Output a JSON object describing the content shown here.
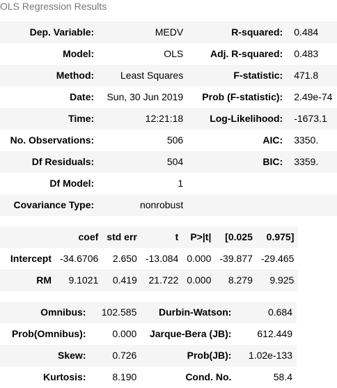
{
  "caption": "OLS Regression Results",
  "summary": {
    "rows": [
      {
        "l1": "Dep. Variable:",
        "v1": "MEDV",
        "l2": "R-squared:",
        "v2": "0.484"
      },
      {
        "l1": "Model:",
        "v1": "OLS",
        "l2": "Adj. R-squared:",
        "v2": "0.483"
      },
      {
        "l1": "Method:",
        "v1": "Least Squares",
        "l2": "F-statistic:",
        "v2": "471.8"
      },
      {
        "l1": "Date:",
        "v1": "Sun, 30 Jun 2019",
        "l2": "Prob (F-statistic):",
        "v2": "2.49e-74"
      },
      {
        "l1": "Time:",
        "v1": "12:21:18",
        "l2": "Log-Likelihood:",
        "v2": "-1673.1"
      },
      {
        "l1": "No. Observations:",
        "v1": "506",
        "l2": "AIC:",
        "v2": "3350."
      },
      {
        "l1": "Df Residuals:",
        "v1": "504",
        "l2": "BIC:",
        "v2": "3359."
      },
      {
        "l1": "Df Model:",
        "v1": "1",
        "l2": "",
        "v2": ""
      },
      {
        "l1": "Covariance Type:",
        "v1": "nonrobust",
        "l2": "",
        "v2": ""
      }
    ]
  },
  "coefficients": {
    "headers": [
      "",
      "coef",
      "std err",
      "t",
      "P>|t|",
      "[0.025",
      "0.975]"
    ],
    "rows": [
      [
        "Intercept",
        "-34.6706",
        "2.650",
        "-13.084",
        "0.000",
        "-39.877",
        "-29.465"
      ],
      [
        "RM",
        "9.1021",
        "0.419",
        "21.722",
        "0.000",
        "8.279",
        "9.925"
      ]
    ]
  },
  "diagnostics": {
    "rows": [
      {
        "l1": "Omnibus:",
        "v1": "102.585",
        "l2": "Durbin-Watson:",
        "v2": "0.684"
      },
      {
        "l1": "Prob(Omnibus):",
        "v1": "0.000",
        "l2": "Jarque-Bera (JB):",
        "v2": "612.449"
      },
      {
        "l1": "Skew:",
        "v1": "0.726",
        "l2": "Prob(JB):",
        "v2": "1.02e-133"
      },
      {
        "l1": "Kurtosis:",
        "v1": "8.190",
        "l2": "Cond. No.",
        "v2": "58.4"
      }
    ]
  }
}
